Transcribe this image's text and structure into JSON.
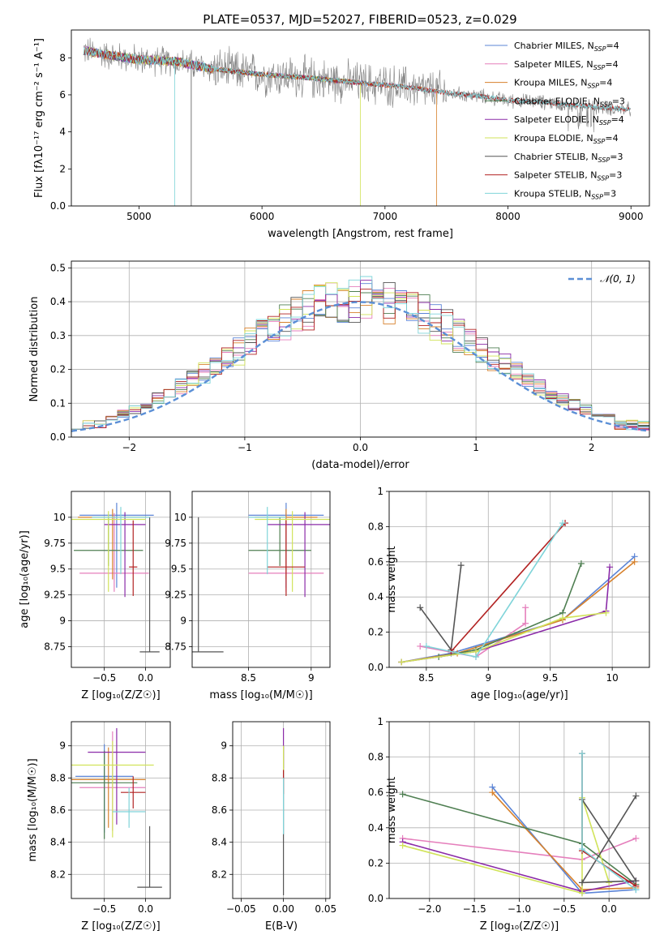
{
  "figure_title": "PLATE=0537, MJD=52027, FIBERID=0523, z=0.029",
  "colors": {
    "Chabrier MILES": "#5b84d6",
    "Salpeter MILES": "#e57fbc",
    "Kroupa MILES": "#d7812c",
    "Chabrier ELODIE": "#4f7f52",
    "Salpeter ELODIE": "#8b2ba8",
    "Kroupa ELODIE": "#d1e35a",
    "Chabrier STELIB": "#555555",
    "Salpeter STELIB": "#b22222",
    "Kroupa STELIB": "#7fd4d9",
    "data": "#808080",
    "gaussian": "#5b8fd6"
  },
  "chart_data": [
    {
      "id": "spectrum",
      "type": "line",
      "xlabel": "wavelength [Angstrom, rest frame]",
      "ylabel": "Flux [fλ10⁻¹⁷ erg cm⁻² s⁻¹ A⁻¹]",
      "xlim": [
        4450,
        9150
      ],
      "ylim": [
        0,
        9.5
      ],
      "xticks": [
        5000,
        6000,
        7000,
        8000,
        9000
      ],
      "yticks": [
        0,
        2,
        4,
        6,
        8
      ],
      "legend_position": "upper-right",
      "legend": [
        {
          "name": "Chabrier MILES",
          "label": "Chabrier MILES, N",
          "sub": "SSP",
          "suffix": "=4"
        },
        {
          "name": "Salpeter MILES",
          "label": "Salpeter MILES, N",
          "sub": "SSP",
          "suffix": "=4"
        },
        {
          "name": "Kroupa MILES",
          "label": "Kroupa MILES, N",
          "sub": "SSP",
          "suffix": "=4"
        },
        {
          "name": "Chabrier ELODIE",
          "label": "Chabrier ELODIE, N",
          "sub": "SSP",
          "suffix": "=3"
        },
        {
          "name": "Salpeter ELODIE",
          "label": "Salpeter ELODIE, N",
          "sub": "SSP",
          "suffix": "=4"
        },
        {
          "name": "Kroupa ELODIE",
          "label": "Kroupa ELODIE, N",
          "sub": "SSP",
          "suffix": "=4"
        },
        {
          "name": "Chabrier STELIB",
          "label": "Chabrier STELIB, N",
          "sub": "SSP",
          "suffix": "=3"
        },
        {
          "name": "Salpeter STELIB",
          "label": "Salpeter STELIB, N",
          "sub": "SSP",
          "suffix": "=3"
        },
        {
          "name": "Kroupa STELIB",
          "label": "Kroupa STELIB, N",
          "sub": "SSP",
          "suffix": "=3"
        }
      ],
      "continuum": [
        [
          4550,
          8.4
        ],
        [
          4700,
          8.2
        ],
        [
          5000,
          7.9
        ],
        [
          5300,
          7.8
        ],
        [
          5600,
          7.4
        ],
        [
          6000,
          7.1
        ],
        [
          6400,
          6.9
        ],
        [
          6800,
          6.65
        ],
        [
          7200,
          6.4
        ],
        [
          7500,
          6.1
        ],
        [
          7800,
          5.9
        ],
        [
          8000,
          5.7
        ],
        [
          8300,
          5.6
        ],
        [
          8600,
          5.4
        ],
        [
          9000,
          5.2
        ]
      ],
      "data_wavelength_range": [
        4550,
        9000
      ],
      "model_wavelength_ranges": {
        "MILES": [
          4550,
          7420
        ],
        "ELODIE": [
          4550,
          6800
        ],
        "STELIB": [
          4550,
          9000
        ]
      },
      "drops": [
        {
          "series": "Kroupa STELIB",
          "x": 5290
        },
        {
          "series": "Chabrier STELIB",
          "x": 5425
        },
        {
          "series": "Kroupa ELODIE",
          "x": 6800
        },
        {
          "series": "Kroupa MILES",
          "x": 7420
        }
      ]
    },
    {
      "id": "residuals",
      "type": "histogram",
      "xlabel": "(data-model)/error",
      "ylabel": "Normed distribution",
      "xlim": [
        -2.5,
        2.5
      ],
      "ylim": [
        0,
        0.52
      ],
      "xticks": [
        -2,
        -1,
        0,
        1,
        2
      ],
      "yticks": [
        0.0,
        0.1,
        0.2,
        0.3,
        0.4,
        0.5
      ],
      "bin_width": 0.1,
      "legend": [
        {
          "name": "gaussian",
          "label": "𝒩(0, 1)"
        }
      ],
      "legend_position": "upper-right",
      "series": [
        "Chabrier MILES",
        "Salpeter MILES",
        "Kroupa MILES",
        "Chabrier ELODIE",
        "Salpeter ELODIE",
        "Kroupa ELODIE",
        "Chabrier STELIB",
        "Salpeter STELIB",
        "Kroupa STELIB"
      ]
    },
    {
      "id": "age_vs_Z",
      "type": "errorbar",
      "xlabel": "Z [log₁₀(Z/Z☉)]",
      "ylabel": "age  [log₁₀(age/yr)]",
      "xlim": [
        -0.9,
        0.3
      ],
      "ylim": [
        8.55,
        10.25
      ],
      "xticks": [
        -0.5,
        0.0
      ],
      "xticklabels": [
        "−0.5",
        "0.0"
      ],
      "yticks": [
        8.75,
        9.0,
        9.25,
        9.5,
        9.75,
        10.0
      ],
      "points": [
        {
          "series": "Chabrier MILES",
          "x": -0.35,
          "xerr": 0.45,
          "y": 10.02,
          "yerr": [
            0.7,
            0.12
          ]
        },
        {
          "series": "Salpeter MILES",
          "x": -0.38,
          "xerr": 0.42,
          "y": 9.46,
          "yerr": [
            0.18,
            0.58
          ]
        },
        {
          "series": "Kroupa MILES",
          "x": -0.4,
          "xerr": 0.42,
          "y": 10.0,
          "yerr": [
            0.6,
            0.08
          ]
        },
        {
          "series": "Chabrier ELODIE",
          "x": -0.45,
          "xerr": 0.42,
          "y": 9.68,
          "yerr": [
            0.15,
            0.32
          ]
        },
        {
          "series": "Salpeter ELODIE",
          "x": -0.25,
          "xerr": 0.25,
          "y": 9.93,
          "yerr": [
            0.7,
            0.12
          ]
        },
        {
          "series": "Kroupa ELODIE",
          "x": -0.45,
          "xerr": 0.45,
          "y": 9.98,
          "yerr": [
            0.7,
            0.08
          ]
        },
        {
          "series": "Chabrier STELIB",
          "x": 0.05,
          "xerr": 0.12,
          "y": 8.7,
          "yerr": [
            0.0,
            1.3
          ]
        },
        {
          "series": "Salpeter STELIB",
          "x": -0.15,
          "xerr": 0.05,
          "y": 9.52,
          "yerr": [
            0.28,
            0.45
          ]
        },
        {
          "series": "Kroupa STELIB",
          "x": -0.3,
          "xerr": 0.35,
          "y": 10.0,
          "yerr": [
            0.55,
            0.1
          ]
        }
      ]
    },
    {
      "id": "age_vs_mass",
      "type": "errorbar",
      "xlabel": "mass [log₁₀(M/M☉)]",
      "ylabel": "",
      "xlim": [
        8.05,
        9.15
      ],
      "ylim": [
        8.55,
        10.25
      ],
      "xticks": [
        8.5,
        9.0
      ],
      "yticks": [
        8.75,
        9.0,
        9.25,
        9.5,
        9.75,
        10.0
      ],
      "points": [
        {
          "series": "Chabrier MILES",
          "x": 8.8,
          "xerr": 0.3,
          "y": 10.02,
          "yerr": [
            0.7,
            0.12
          ]
        },
        {
          "series": "Salpeter MILES",
          "x": 8.8,
          "xerr": 0.3,
          "y": 9.46,
          "yerr": [
            0.18,
            0.58
          ]
        },
        {
          "series": "Kroupa MILES",
          "x": 8.8,
          "xerr": 0.25,
          "y": 10.0,
          "yerr": [
            0.6,
            0.08
          ]
        },
        {
          "series": "Chabrier ELODIE",
          "x": 8.75,
          "xerr": 0.25,
          "y": 9.68,
          "yerr": [
            0.15,
            0.32
          ]
        },
        {
          "series": "Salpeter ELODIE",
          "x": 8.95,
          "xerr": 0.3,
          "y": 9.93,
          "yerr": [
            0.7,
            0.12
          ]
        },
        {
          "series": "Kroupa ELODIE",
          "x": 8.85,
          "xerr": 0.3,
          "y": 9.98,
          "yerr": [
            0.7,
            0.08
          ]
        },
        {
          "series": "Chabrier STELIB",
          "x": 8.1,
          "xerr": 0.2,
          "y": 8.7,
          "yerr": [
            0.0,
            1.3
          ]
        },
        {
          "series": "Salpeter STELIB",
          "x": 8.8,
          "xerr": 0.15,
          "y": 9.52,
          "yerr": [
            0.28,
            0.45
          ]
        },
        {
          "series": "Kroupa STELIB",
          "x": 8.65,
          "xerr": 0.15,
          "y": 10.0,
          "yerr": [
            0.55,
            0.1
          ]
        }
      ]
    },
    {
      "id": "weight_vs_age",
      "type": "line",
      "xlabel": "age  [log₁₀(age/yr)]",
      "ylabel": "mass weight",
      "xlim": [
        8.2,
        10.3
      ],
      "ylim": [
        0,
        1.0
      ],
      "xticks": [
        8.5,
        9.0,
        9.5,
        10.0
      ],
      "yticks": [
        0.0,
        0.2,
        0.4,
        0.6,
        0.8,
        1.0
      ],
      "series": [
        {
          "name": "Chabrier MILES",
          "x": [
            8.3,
            8.7,
            9.6,
            10.18
          ],
          "y": [
            0.03,
            0.08,
            0.27,
            0.63
          ]
        },
        {
          "name": "Salpeter MILES",
          "x": [
            8.45,
            8.9,
            9.3,
            9.3
          ],
          "y": [
            0.12,
            0.06,
            0.25,
            0.34
          ]
        },
        {
          "name": "Kroupa MILES",
          "x": [
            8.3,
            8.75,
            9.6,
            10.18
          ],
          "y": [
            0.03,
            0.08,
            0.27,
            0.6
          ]
        },
        {
          "name": "Chabrier ELODIE",
          "x": [
            8.6,
            8.9,
            9.6,
            9.75
          ],
          "y": [
            0.06,
            0.1,
            0.31,
            0.59
          ]
        },
        {
          "name": "Salpeter ELODIE",
          "x": [
            8.3,
            8.9,
            9.95,
            9.98
          ],
          "y": [
            0.03,
            0.09,
            0.32,
            0.57
          ]
        },
        {
          "name": "Kroupa ELODIE",
          "x": [
            8.3,
            8.9,
            9.6,
            9.95
          ],
          "y": [
            0.03,
            0.09,
            0.28,
            0.31
          ]
        },
        {
          "name": "Chabrier STELIB",
          "x": [
            8.45,
            8.7,
            8.78
          ],
          "y": [
            0.34,
            0.1,
            0.58
          ]
        },
        {
          "name": "Salpeter STELIB",
          "x": [
            8.7,
            9.62
          ],
          "y": [
            0.09,
            0.82
          ]
        },
        {
          "name": "Kroupa STELIB",
          "x": [
            8.5,
            8.9,
            9.6
          ],
          "y": [
            0.12,
            0.06,
            0.82
          ]
        }
      ]
    },
    {
      "id": "mass_vs_Z",
      "type": "errorbar",
      "xlabel": "Z [log₁₀(Z/Z☉)]",
      "ylabel": "mass [log₁₀(M/M☉)]",
      "xlim": [
        -0.9,
        0.3
      ],
      "ylim": [
        8.05,
        9.15
      ],
      "xticks": [
        -0.5,
        0.0
      ],
      "xticklabels": [
        "−0.5",
        "0.0"
      ],
      "yticks": [
        8.2,
        8.4,
        8.6,
        8.8,
        9.0
      ],
      "points": [
        {
          "series": "Chabrier MILES",
          "x": -0.5,
          "xerr": 0.35,
          "y": 8.81,
          "yerr": [
            0.35,
            0.2
          ]
        },
        {
          "series": "Salpeter MILES",
          "x": -0.4,
          "xerr": 0.4,
          "y": 8.74,
          "yerr": [
            0.27,
            0.35
          ]
        },
        {
          "series": "Kroupa MILES",
          "x": -0.45,
          "xerr": 0.45,
          "y": 8.79,
          "yerr": [
            0.3,
            0.2
          ]
        },
        {
          "series": "Chabrier ELODIE",
          "x": -0.5,
          "xerr": 0.4,
          "y": 8.77,
          "yerr": [
            0.35,
            0.2
          ]
        },
        {
          "series": "Salpeter ELODIE",
          "x": -0.35,
          "xerr": 0.35,
          "y": 8.96,
          "yerr": [
            0.45,
            0.15
          ]
        },
        {
          "series": "Kroupa ELODIE",
          "x": -0.4,
          "xerr": 0.5,
          "y": 8.88,
          "yerr": [
            0.45,
            0.15
          ]
        },
        {
          "series": "Chabrier STELIB",
          "x": 0.05,
          "xerr": 0.15,
          "y": 8.12,
          "yerr": [
            0.0,
            0.38
          ]
        },
        {
          "series": "Salpeter STELIB",
          "x": -0.15,
          "xerr": 0.15,
          "y": 8.71,
          "yerr": [
            0.1,
            0.1
          ]
        },
        {
          "series": "Kroupa STELIB",
          "x": -0.2,
          "xerr": 0.2,
          "y": 8.59,
          "yerr": [
            0.1,
            0.15
          ]
        }
      ]
    },
    {
      "id": "mass_vs_ebv",
      "type": "errorbar",
      "xlabel": "E(B-V)",
      "ylabel": "",
      "xlim": [
        -0.06,
        0.055
      ],
      "ylim": [
        8.05,
        9.15
      ],
      "xticks": [
        -0.05,
        0.0,
        0.05
      ],
      "xticklabels": [
        "−0.05",
        "0.00",
        "0.05"
      ],
      "yticks": [
        8.2,
        8.4,
        8.6,
        8.8,
        9.0
      ],
      "points": [
        {
          "series": "Chabrier STELIB",
          "x": 0.0,
          "xerr": 0.0,
          "y": 8.5,
          "yerr": [
            0.43,
            0.5
          ]
        },
        {
          "series": "Salpeter ELODIE",
          "x": 0.0,
          "xerr": 0.0,
          "y": 8.96,
          "yerr": [
            0.1,
            0.15
          ]
        },
        {
          "series": "Kroupa ELODIE",
          "x": 0.0,
          "xerr": 0.0,
          "y": 8.88,
          "yerr": [
            0.05,
            0.12
          ]
        },
        {
          "series": "Salpeter STELIB",
          "x": 0.0,
          "xerr": 0.0,
          "y": 8.75,
          "yerr": [
            0.05,
            0.1
          ]
        },
        {
          "series": "Kroupa STELIB",
          "x": 0.0,
          "xerr": 0.0,
          "y": 8.65,
          "yerr": [
            0.2,
            0.15
          ]
        }
      ]
    },
    {
      "id": "weight_vs_Z",
      "type": "line",
      "xlabel": "Z [log₁₀(Z/Z☉)]",
      "ylabel": "mass weight",
      "xlim": [
        -2.45,
        0.45
      ],
      "ylim": [
        0,
        1.0
      ],
      "xticks": [
        -2.0,
        -1.5,
        -1.0,
        -0.5,
        0.0
      ],
      "xticklabels": [
        "−2.0",
        "−1.5",
        "−1.0",
        "−0.5",
        "0.0"
      ],
      "yticks": [
        0.0,
        0.2,
        0.4,
        0.6,
        0.8,
        1.0
      ],
      "series": [
        {
          "name": "Chabrier MILES",
          "x": [
            -1.3,
            -0.3,
            0.3
          ],
          "y": [
            0.63,
            0.03,
            0.05
          ]
        },
        {
          "name": "Salpeter MILES",
          "x": [
            -2.3,
            -0.3,
            0.3
          ],
          "y": [
            0.34,
            0.22,
            0.34
          ]
        },
        {
          "name": "Kroupa MILES",
          "x": [
            -1.3,
            -0.3,
            0.3
          ],
          "y": [
            0.6,
            0.05,
            0.06
          ]
        },
        {
          "name": "Chabrier ELODIE",
          "x": [
            -2.3,
            -0.3,
            0.3
          ],
          "y": [
            0.59,
            0.31,
            0.08
          ]
        },
        {
          "name": "Salpeter ELODIE",
          "x": [
            -2.3,
            -0.3,
            0.3
          ],
          "y": [
            0.32,
            0.04,
            0.1
          ]
        },
        {
          "name": "Kroupa ELODIE",
          "x": [
            -2.3,
            -0.3,
            -0.3,
            0.0
          ],
          "y": [
            0.3,
            0.03,
            0.57,
            0.09
          ]
        },
        {
          "name": "Chabrier STELIB",
          "x": [
            -0.3,
            0.3,
            -0.3,
            0.3
          ],
          "y": [
            0.56,
            0.1,
            0.09,
            0.58
          ]
        },
        {
          "name": "Salpeter STELIB",
          "x": [
            -0.3,
            -0.3,
            0.3
          ],
          "y": [
            0.82,
            0.27,
            0.07
          ]
        },
        {
          "name": "Kroupa STELIB",
          "x": [
            -0.3,
            -0.3,
            0.3
          ],
          "y": [
            0.82,
            0.28,
            0.05
          ]
        }
      ]
    }
  ]
}
